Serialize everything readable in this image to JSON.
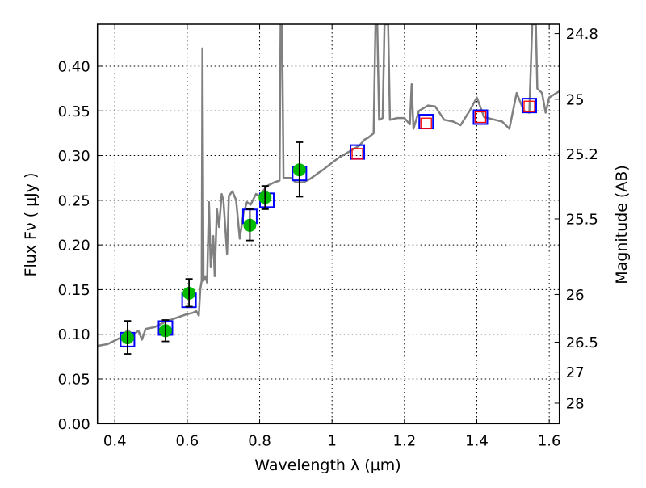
{
  "chart_data": {
    "type": "scatter",
    "xlabel": "Wavelength  λ (μm)",
    "ylabel": "Flux  Fν  ( μJy )",
    "ylabel_right": "Magnitude (AB)",
    "xlim": [
      0.352,
      1.628
    ],
    "ylim": [
      0.0,
      0.447
    ],
    "grid": true,
    "x_ticks": [
      0.4,
      0.6,
      0.8,
      1.0,
      1.2,
      1.4,
      1.6
    ],
    "x_tick_labels": [
      "0.4",
      "0.6",
      "0.8",
      "1",
      "1.2",
      "1.4",
      "1.6"
    ],
    "y_ticks": [
      0.0,
      0.05,
      0.1,
      0.15,
      0.2,
      0.25,
      0.3,
      0.35,
      0.4
    ],
    "y_tick_labels": [
      "0.00",
      "0.05",
      "0.10",
      "0.15",
      "0.20",
      "0.25",
      "0.30",
      "0.35",
      "0.40"
    ],
    "mag_ticks": [
      24.8,
      25,
      25.2,
      25.5,
      26,
      26.5,
      27,
      28
    ],
    "mag_tick_labels": [
      "24.8",
      "25",
      "25.2",
      "25.5",
      "26",
      "26.5",
      "27",
      "28"
    ],
    "mag_zeropoint": 23.9,
    "colors": {
      "spectrum": "#808080",
      "observed": "#00bb00",
      "model": "#0000ff",
      "model_upper": "#ff0000",
      "errorbar": "#000000"
    },
    "spectrum": [
      [
        0.352,
        0.087
      ],
      [
        0.38,
        0.089
      ],
      [
        0.4,
        0.093
      ],
      [
        0.42,
        0.097
      ],
      [
        0.435,
        0.105
      ],
      [
        0.45,
        0.099
      ],
      [
        0.465,
        0.104
      ],
      [
        0.475,
        0.094
      ],
      [
        0.485,
        0.106
      ],
      [
        0.51,
        0.108
      ],
      [
        0.53,
        0.112
      ],
      [
        0.56,
        0.117
      ],
      [
        0.595,
        0.122
      ],
      [
        0.615,
        0.124
      ],
      [
        0.625,
        0.126
      ],
      [
        0.632,
        0.121
      ],
      [
        0.636,
        0.15
      ],
      [
        0.64,
        0.16
      ],
      [
        0.642,
        0.42
      ],
      [
        0.645,
        0.16
      ],
      [
        0.65,
        0.165
      ],
      [
        0.655,
        0.158
      ],
      [
        0.66,
        0.248
      ],
      [
        0.665,
        0.175
      ],
      [
        0.672,
        0.21
      ],
      [
        0.676,
        0.165
      ],
      [
        0.682,
        0.24
      ],
      [
        0.688,
        0.22
      ],
      [
        0.695,
        0.257
      ],
      [
        0.7,
        0.25
      ],
      [
        0.71,
        0.19
      ],
      [
        0.715,
        0.255
      ],
      [
        0.725,
        0.26
      ],
      [
        0.735,
        0.25
      ],
      [
        0.745,
        0.207
      ],
      [
        0.755,
        0.235
      ],
      [
        0.765,
        0.248
      ],
      [
        0.775,
        0.245
      ],
      [
        0.79,
        0.257
      ],
      [
        0.8,
        0.255
      ],
      [
        0.82,
        0.266
      ],
      [
        0.84,
        0.27
      ],
      [
        0.855,
        0.272
      ],
      [
        0.858,
        0.447
      ],
      [
        0.862,
        0.447
      ],
      [
        0.866,
        0.275
      ],
      [
        0.886,
        0.275
      ],
      [
        0.9,
        0.27
      ],
      [
        0.92,
        0.27
      ],
      [
        0.94,
        0.274
      ],
      [
        0.96,
        0.28
      ],
      [
        0.975,
        0.284
      ],
      [
        1.0,
        0.292
      ],
      [
        1.02,
        0.298
      ],
      [
        1.05,
        0.305
      ],
      [
        1.075,
        0.311
      ],
      [
        1.09,
        0.318
      ],
      [
        1.1,
        0.32
      ],
      [
        1.115,
        0.325
      ],
      [
        1.12,
        0.447
      ],
      [
        1.125,
        0.447
      ],
      [
        1.13,
        0.34
      ],
      [
        1.14,
        0.342
      ],
      [
        1.145,
        0.447
      ],
      [
        1.155,
        0.447
      ],
      [
        1.16,
        0.34
      ],
      [
        1.18,
        0.342
      ],
      [
        1.2,
        0.342
      ],
      [
        1.215,
        0.335
      ],
      [
        1.22,
        0.38
      ],
      [
        1.225,
        0.33
      ],
      [
        1.24,
        0.35
      ],
      [
        1.265,
        0.356
      ],
      [
        1.285,
        0.355
      ],
      [
        1.31,
        0.34
      ],
      [
        1.335,
        0.338
      ],
      [
        1.355,
        0.334
      ],
      [
        1.38,
        0.35
      ],
      [
        1.4,
        0.365
      ],
      [
        1.42,
        0.343
      ],
      [
        1.45,
        0.34
      ],
      [
        1.47,
        0.338
      ],
      [
        1.49,
        0.33
      ],
      [
        1.51,
        0.37
      ],
      [
        1.52,
        0.36
      ],
      [
        1.53,
        0.35
      ],
      [
        1.545,
        0.348
      ],
      [
        1.553,
        0.447
      ],
      [
        1.563,
        0.447
      ],
      [
        1.567,
        0.375
      ],
      [
        1.58,
        0.37
      ],
      [
        1.59,
        0.348
      ],
      [
        1.6,
        0.365
      ],
      [
        1.628,
        0.372
      ]
    ],
    "observed": [
      {
        "x": 0.435,
        "y": 0.096,
        "err_lo": 0.078,
        "err_hi": 0.115
      },
      {
        "x": 0.54,
        "y": 0.104,
        "err_lo": 0.092,
        "err_hi": 0.116
      },
      {
        "x": 0.605,
        "y": 0.146,
        "err_lo": 0.131,
        "err_hi": 0.162
      },
      {
        "x": 0.773,
        "y": 0.222,
        "err_lo": 0.205,
        "err_hi": 0.24
      },
      {
        "x": 0.815,
        "y": 0.253,
        "err_lo": 0.24,
        "err_hi": 0.266
      },
      {
        "x": 0.91,
        "y": 0.284,
        "err_lo": 0.254,
        "err_hi": 0.315
      }
    ],
    "model": [
      {
        "x": 0.435,
        "y": 0.094
      },
      {
        "x": 0.54,
        "y": 0.107
      },
      {
        "x": 0.605,
        "y": 0.138
      },
      {
        "x": 0.773,
        "y": 0.232
      },
      {
        "x": 0.82,
        "y": 0.25
      },
      {
        "x": 0.91,
        "y": 0.28
      },
      {
        "x": 1.07,
        "y": 0.304
      },
      {
        "x": 1.26,
        "y": 0.338
      },
      {
        "x": 1.41,
        "y": 0.343
      },
      {
        "x": 1.545,
        "y": 0.356
      }
    ],
    "model_red": [
      {
        "x": 1.07,
        "y": 0.302
      },
      {
        "x": 1.26,
        "y": 0.336
      },
      {
        "x": 1.41,
        "y": 0.343
      },
      {
        "x": 1.545,
        "y": 0.355
      }
    ]
  }
}
